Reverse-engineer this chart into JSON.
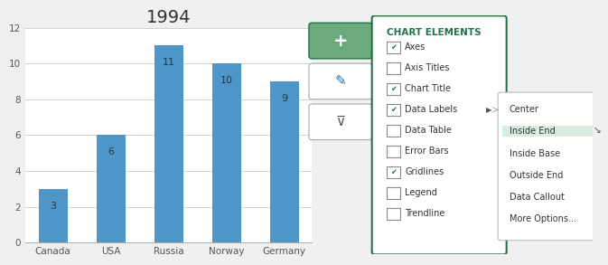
{
  "title": "1994",
  "categories": [
    "Canada",
    "USA",
    "Russia",
    "Norway",
    "Germany"
  ],
  "values": [
    3,
    6,
    11,
    10,
    9
  ],
  "bar_color": "#4F95C8",
  "bar_color2": "#5BA3D0",
  "ylim": [
    0,
    12
  ],
  "yticks": [
    0,
    2,
    4,
    6,
    8,
    10,
    12
  ],
  "chart_elements_title": "CHART ELEMENTS",
  "chart_elements": [
    {
      "label": "Axes",
      "checked": true
    },
    {
      "label": "Axis Titles",
      "checked": false
    },
    {
      "label": "Chart Title",
      "checked": true
    },
    {
      "label": "Data Labels",
      "checked": true,
      "arrow": true
    },
    {
      "label": "Data Table",
      "checked": false
    },
    {
      "label": "Error Bars",
      "checked": false
    },
    {
      "label": "Gridlines",
      "checked": true
    },
    {
      "label": "Legend",
      "checked": false
    },
    {
      "label": "Trendline",
      "checked": false
    }
  ],
  "submenu_items": [
    "Center",
    "Inside End",
    "Inside Base",
    "Outside End",
    "Data Callout",
    "More Options..."
  ],
  "submenu_highlighted": "Inside End",
  "panel_border_color": "#217346",
  "submenu_highlight_color": "#D8EDDF",
  "checkbox_color": "#217346",
  "header_color": "#217346",
  "add_button_color": "#6aaa7c",
  "chart_bg": "#ffffff",
  "grid_color": "#d0d0d0",
  "chart_border_color": "#b0b0b0"
}
